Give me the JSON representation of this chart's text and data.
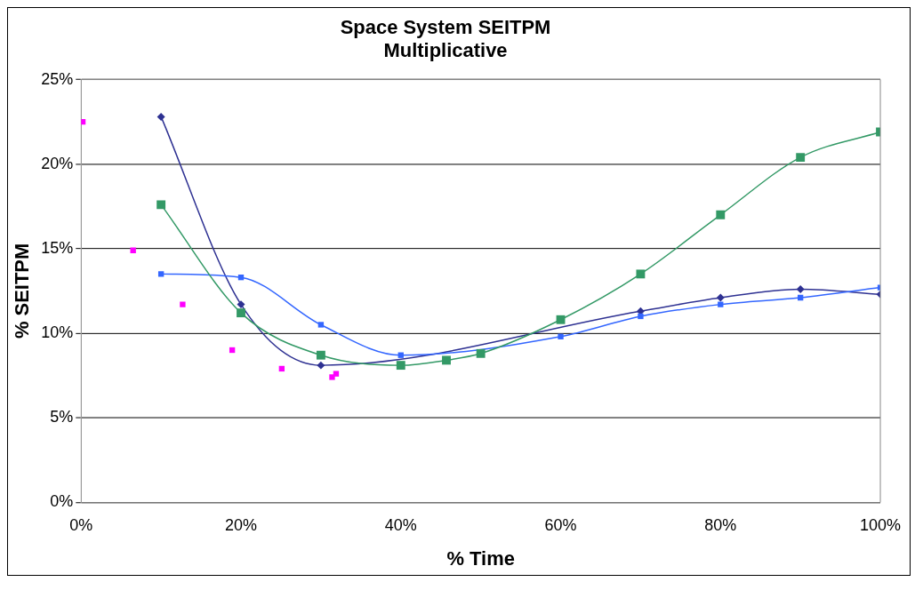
{
  "chart_data": {
    "type": "line",
    "title": [
      "Space System SEITPM",
      "Multiplicative"
    ],
    "xlabel": "% Time",
    "ylabel": "% SEITPM",
    "xlim": [
      0,
      100
    ],
    "xticks": [
      {
        "value": 0,
        "label": "0%"
      },
      {
        "value": 20,
        "label": "20%"
      },
      {
        "value": 40,
        "label": "40%"
      },
      {
        "value": 60,
        "label": "60%"
      },
      {
        "value": 80,
        "label": "80%"
      },
      {
        "value": 100,
        "label": "100%"
      }
    ],
    "ylim": [
      0,
      25
    ],
    "yticks": [
      {
        "value": 0,
        "label": "0%"
      },
      {
        "value": 5,
        "label": "5%"
      },
      {
        "value": 10,
        "label": "10%"
      },
      {
        "value": 15,
        "label": "15%"
      },
      {
        "value": 20,
        "label": "20%"
      },
      {
        "value": 25,
        "label": "25%"
      }
    ],
    "grid": "y",
    "legend": false,
    "series": [
      {
        "type": "line",
        "color": "#2e3192",
        "marker": "diamond",
        "x": [
          10,
          20,
          30,
          40,
          50,
          70,
          80,
          90,
          100
        ],
        "values": [
          22.8,
          11.7,
          8.1,
          null,
          null,
          11.3,
          12.1,
          12.6,
          12.3
        ]
      },
      {
        "type": "line",
        "color": "#3366ff",
        "marker": "square",
        "x": [
          10,
          20,
          30,
          40,
          50,
          60,
          70,
          80,
          90,
          100
        ],
        "values": [
          13.5,
          13.3,
          10.5,
          8.7,
          null,
          9.8,
          11.0,
          11.7,
          12.1,
          12.7
        ]
      },
      {
        "type": "line",
        "color": "#339966",
        "marker": "square",
        "x": [
          10,
          20,
          30,
          40,
          45.7,
          50,
          60,
          70,
          80,
          90,
          100
        ],
        "values": [
          17.6,
          11.2,
          8.7,
          8.1,
          8.4,
          8.8,
          10.8,
          13.5,
          17.0,
          20.4,
          21.9
        ]
      },
      {
        "type": "scatter",
        "color": "#ff00ff",
        "marker": "square",
        "x": [
          0.2,
          6.5,
          12.7,
          18.9,
          25.1,
          31.4,
          31.9
        ],
        "values": [
          22.5,
          14.9,
          11.7,
          9.0,
          7.9,
          7.4,
          7.6
        ]
      }
    ]
  }
}
